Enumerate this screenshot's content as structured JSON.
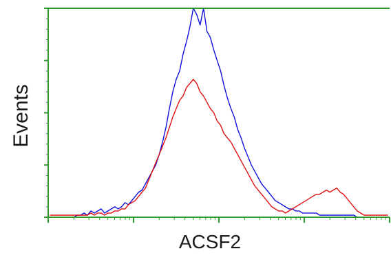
{
  "chart_data": {
    "type": "line",
    "title": "",
    "xlabel": "ACSF2",
    "ylabel": "Events",
    "xscale": "log",
    "grid": false,
    "legend": "none",
    "axis_color": "#2e9a2e",
    "bins": 100,
    "ylim": [
      0,
      100
    ],
    "series": [
      {
        "color": "#1010dd",
        "values": [
          0,
          0,
          0,
          0,
          0,
          0,
          0,
          0,
          1,
          1,
          2,
          1,
          3,
          2,
          3,
          4,
          2,
          3,
          4,
          5,
          4,
          5,
          7,
          6,
          8,
          10,
          12,
          13,
          16,
          19,
          22,
          25,
          30,
          36,
          43,
          52,
          60,
          66,
          70,
          78,
          84,
          91,
          100,
          97,
          92,
          100,
          89,
          86,
          80,
          75,
          70,
          63,
          57,
          52,
          48,
          42,
          38,
          33,
          29,
          25,
          22,
          19,
          16,
          14,
          12,
          10,
          8,
          7,
          6,
          5,
          4,
          4,
          3,
          3,
          2,
          2,
          2,
          2,
          2,
          1,
          1,
          1,
          1,
          1,
          1,
          1,
          1,
          1,
          1,
          1,
          0,
          0,
          0,
          0,
          0,
          0,
          0,
          0,
          0,
          0
        ]
      },
      {
        "color": "#dd1111",
        "values": [
          1,
          1,
          1,
          1,
          1,
          1,
          1,
          1,
          1,
          1,
          1,
          1,
          2,
          1,
          2,
          2,
          1,
          2,
          2,
          3,
          3,
          4,
          4,
          6,
          7,
          8,
          10,
          12,
          14,
          18,
          22,
          26,
          30,
          34,
          38,
          43,
          48,
          52,
          56,
          58,
          62,
          64,
          66,
          64,
          60,
          58,
          55,
          52,
          50,
          46,
          44,
          40,
          38,
          36,
          33,
          30,
          27,
          24,
          21,
          18,
          15,
          13,
          11,
          9,
          7,
          5,
          4,
          3,
          3,
          2,
          3,
          4,
          5,
          6,
          7,
          8,
          9,
          10,
          11,
          11,
          12,
          13,
          12,
          13,
          14,
          12,
          11,
          9,
          7,
          5,
          3,
          2,
          1,
          1,
          1,
          1,
          1,
          1,
          1,
          1
        ]
      }
    ]
  }
}
